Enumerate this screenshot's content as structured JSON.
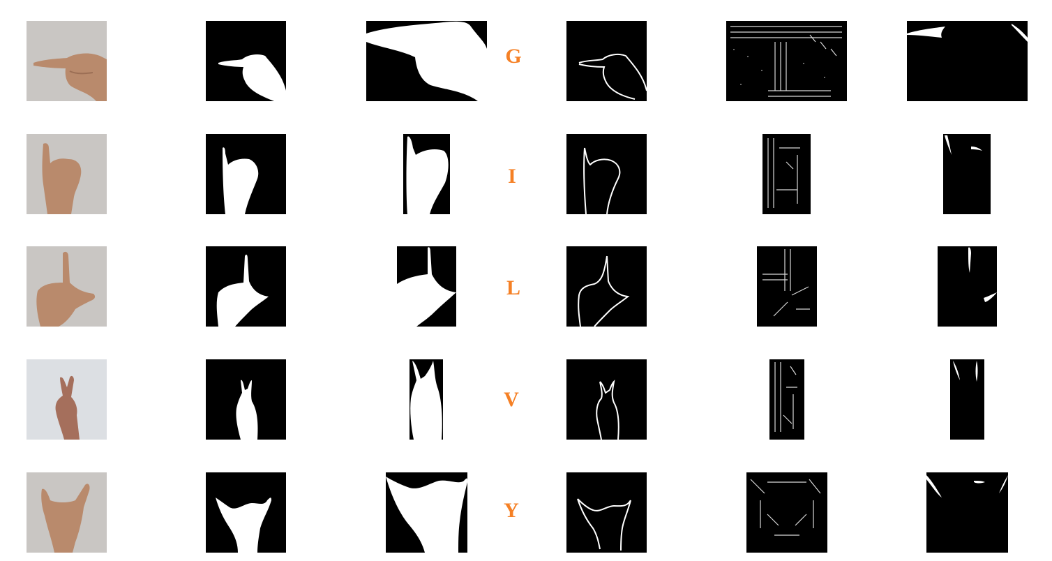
{
  "colors": {
    "letter": "#f58025",
    "background": "#ffffff",
    "panel": "#000000",
    "skin": "#b98a6c"
  },
  "rows": [
    {
      "letter": "G"
    },
    {
      "letter": "I"
    },
    {
      "letter": "L"
    },
    {
      "letter": "V"
    },
    {
      "letter": "Y"
    }
  ]
}
